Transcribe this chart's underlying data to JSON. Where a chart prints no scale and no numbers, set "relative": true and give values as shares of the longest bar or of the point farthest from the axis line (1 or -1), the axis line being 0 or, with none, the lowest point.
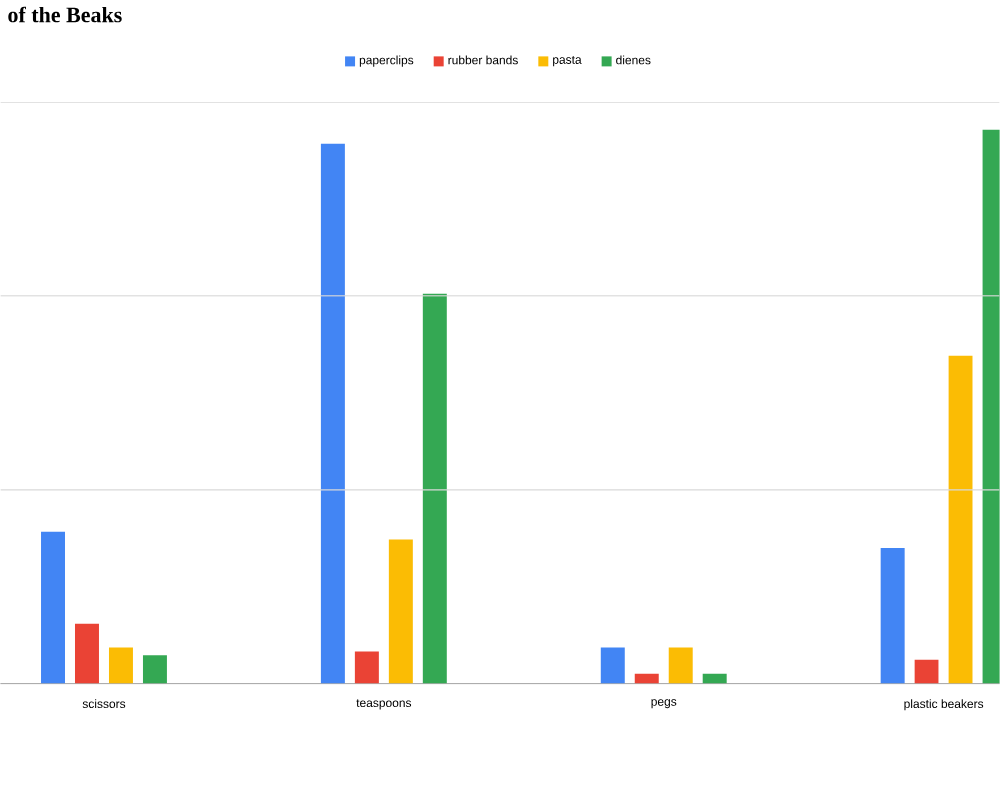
{
  "chart_data": {
    "type": "bar",
    "title": "of the Beaks",
    "relative": true,
    "categories": [
      "scissors",
      "teaspoons",
      "pegs",
      "plastic beakers"
    ],
    "series": [
      {
        "name": "paperclips",
        "color": "#4285f4",
        "values": [
          0.274,
          0.975,
          0.065,
          0.245
        ]
      },
      {
        "name": "rubber bands",
        "color": "#ea4335",
        "values": [
          0.108,
          0.058,
          0.018,
          0.043
        ]
      },
      {
        "name": "pasta",
        "color": "#fbbc04",
        "values": [
          0.065,
          0.26,
          0.065,
          0.592
        ]
      },
      {
        "name": "dienes",
        "color": "#34a853",
        "values": [
          0.051,
          0.704,
          0.018,
          1.0
        ]
      }
    ],
    "ref_lines": [
      {
        "axis": "y",
        "value": 0.35,
        "color": "#d9d9d9"
      },
      {
        "axis": "y",
        "value": 0.7,
        "color": "#d9d9d9"
      },
      {
        "axis": "y",
        "value": 1.05,
        "color": "#d9d9d9"
      }
    ],
    "legend": "top"
  }
}
